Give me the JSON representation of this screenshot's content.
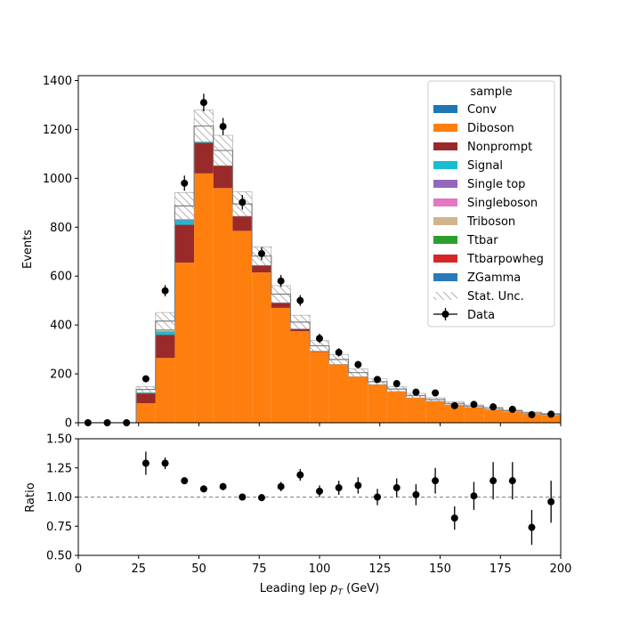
{
  "chart_data": [
    {
      "type": "bar",
      "stacked": true,
      "histtype": "step-filled",
      "xlabel_main": "Leading lep ",
      "xlabel_sym": "p",
      "xlabel_sub": "T",
      "xlabel_unit": " (GeV)",
      "ylabel": "Events",
      "xlim": [
        0,
        200
      ],
      "ylim": [
        0,
        1420
      ],
      "yticks": [
        0,
        200,
        400,
        600,
        800,
        1000,
        1200,
        1400
      ],
      "bin_edges": [
        0,
        8,
        16,
        24,
        32,
        40,
        48,
        56,
        64,
        72,
        80,
        88,
        96,
        104,
        112,
        120,
        128,
        136,
        144,
        152,
        160,
        168,
        176,
        184,
        192,
        200
      ],
      "legend_title": "sample",
      "legend_position": "upper right",
      "series": [
        {
          "name": "Diboson",
          "color": "#ff7f0e",
          "values": [
            0,
            0,
            0,
            80,
            265,
            655,
            1020,
            960,
            785,
            615,
            470,
            375,
            290,
            240,
            190,
            155,
            130,
            105,
            90,
            75,
            65,
            57,
            47,
            40,
            35
          ]
        },
        {
          "name": "Nonprompt",
          "color": "#9a2a2a",
          "values": [
            0,
            0,
            0,
            40,
            95,
            155,
            125,
            95,
            65,
            32,
            28,
            18,
            10,
            8,
            6,
            5,
            3,
            3,
            2,
            2,
            1,
            1,
            1,
            0,
            0
          ]
        },
        {
          "name": "Signal",
          "color": "#17becf",
          "values": [
            0,
            0,
            0,
            3,
            12,
            18,
            20,
            18,
            14,
            10,
            8,
            6,
            4,
            3,
            3,
            2,
            2,
            1,
            1,
            1,
            1,
            0,
            0,
            0,
            0
          ]
        },
        {
          "name": "Single top",
          "color": "#9467bd",
          "values": [
            0,
            0,
            0,
            1,
            2,
            3,
            3,
            2,
            2,
            2,
            1,
            1,
            1,
            1,
            0,
            0,
            0,
            0,
            0,
            0,
            0,
            0,
            0,
            0,
            0
          ]
        },
        {
          "name": "Singleboson",
          "color": "#e377c2",
          "values": [
            0,
            0,
            0,
            1,
            2,
            2,
            2,
            2,
            1,
            1,
            1,
            1,
            1,
            0,
            0,
            0,
            0,
            0,
            0,
            0,
            0,
            0,
            0,
            0,
            0
          ]
        },
        {
          "name": "Triboson",
          "color": "#d2b48c",
          "values": [
            0,
            0,
            0,
            1,
            2,
            3,
            3,
            3,
            2,
            2,
            2,
            1,
            1,
            1,
            1,
            1,
            1,
            0,
            0,
            0,
            0,
            0,
            0,
            0,
            0
          ]
        },
        {
          "name": "Ttbar",
          "color": "#2ca02c",
          "values": [
            0,
            0,
            0,
            1,
            2,
            3,
            3,
            3,
            2,
            2,
            2,
            1,
            1,
            1,
            1,
            1,
            0,
            0,
            0,
            0,
            0,
            0,
            0,
            0,
            0
          ]
        },
        {
          "name": "Ttbarpowheg",
          "color": "#d62728",
          "values": [
            0,
            0,
            0,
            1,
            2,
            3,
            3,
            3,
            2,
            2,
            2,
            1,
            1,
            1,
            1,
            1,
            0,
            0,
            0,
            0,
            0,
            0,
            0,
            0,
            0
          ]
        },
        {
          "name": "ZGamma",
          "color": "#2a7ab8",
          "values": [
            0,
            0,
            0,
            8,
            34,
            45,
            35,
            28,
            22,
            16,
            12,
            8,
            6,
            4,
            3,
            3,
            2,
            2,
            2,
            1,
            1,
            1,
            1,
            0,
            0
          ]
        }
      ],
      "legend": [
        {
          "label": "Conv",
          "kind": "patch",
          "color": "#1f77b4"
        },
        {
          "label": "Diboson",
          "kind": "patch",
          "color": "#ff7f0e"
        },
        {
          "label": "Nonprompt",
          "kind": "patch",
          "color": "#9a2a2a"
        },
        {
          "label": "Signal",
          "kind": "patch",
          "color": "#17becf"
        },
        {
          "label": "Single top",
          "kind": "patch",
          "color": "#9467bd"
        },
        {
          "label": "Singleboson",
          "kind": "patch",
          "color": "#e377c2"
        },
        {
          "label": "Triboson",
          "kind": "patch",
          "color": "#d2b48c"
        },
        {
          "label": "Ttbar",
          "kind": "patch",
          "color": "#2ca02c"
        },
        {
          "label": "Ttbarpowheg",
          "kind": "patch",
          "color": "#d62728"
        },
        {
          "label": "ZGamma",
          "kind": "patch",
          "color": "#2a7ab8"
        },
        {
          "label": "Stat. Unc.",
          "kind": "hatch",
          "color": "#808080"
        },
        {
          "label": "Data",
          "kind": "errorbar",
          "color": "#000000"
        }
      ],
      "stat_unc": [
        0,
        0,
        0,
        12,
        35,
        55,
        65,
        62,
        50,
        38,
        35,
        28,
        22,
        20,
        16,
        12,
        10,
        9,
        7,
        6,
        5,
        5,
        4,
        4,
        4
      ],
      "data": {
        "name": "Data",
        "x": [
          4,
          12,
          20,
          28,
          36,
          44,
          52,
          60,
          68,
          76,
          84,
          92,
          100,
          108,
          116,
          124,
          132,
          140,
          148,
          156,
          164,
          172,
          180,
          188,
          196
        ],
        "y": [
          0,
          0,
          0,
          180,
          540,
          980,
          1310,
          1212,
          902,
          692,
          580,
          500,
          345,
          288,
          238,
          177,
          160,
          125,
          122,
          70,
          75,
          65,
          55,
          33,
          35
        ],
        "err": [
          0,
          0,
          0,
          13,
          23,
          31,
          36,
          35,
          30,
          26,
          24,
          22,
          19,
          17,
          15,
          13,
          13,
          11,
          11,
          8,
          9,
          8,
          7,
          6,
          6
        ]
      }
    },
    {
      "type": "scatter",
      "xlabel": "",
      "ylabel": "Ratio",
      "xlim": [
        0,
        200
      ],
      "ylim": [
        0.5,
        1.5
      ],
      "yticks": [
        0.5,
        0.75,
        1.0,
        1.25,
        1.5
      ],
      "xticks": [
        0,
        25,
        50,
        75,
        100,
        125,
        150,
        175,
        200
      ],
      "reference_line": 1.0,
      "x": [
        28,
        36,
        44,
        52,
        60,
        68,
        76,
        84,
        92,
        100,
        108,
        116,
        124,
        132,
        140,
        148,
        156,
        164,
        172,
        180,
        188,
        196
      ],
      "y": [
        1.29,
        1.29,
        1.14,
        1.07,
        1.09,
        1.0,
        0.995,
        1.09,
        1.19,
        1.05,
        1.08,
        1.1,
        1.0,
        1.08,
        1.02,
        1.14,
        0.82,
        1.01,
        1.14,
        1.14,
        0.74,
        0.96
      ],
      "err": [
        0.1,
        0.05,
        0.03,
        0.03,
        0.03,
        0.03,
        0.03,
        0.04,
        0.05,
        0.05,
        0.06,
        0.07,
        0.07,
        0.08,
        0.09,
        0.11,
        0.1,
        0.12,
        0.16,
        0.16,
        0.15,
        0.18
      ]
    }
  ]
}
